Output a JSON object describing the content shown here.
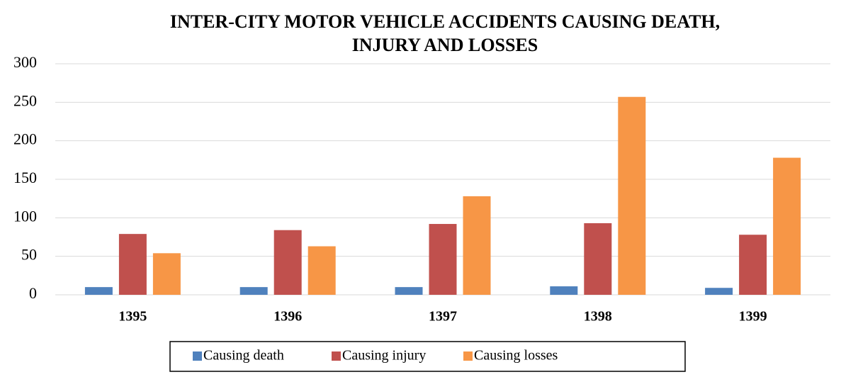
{
  "chart_data": {
    "type": "bar",
    "title": [
      "INTER-CITY MOTOR VEHICLE ACCIDENTS CAUSING DEATH,",
      "INJURY AND LOSSES"
    ],
    "categories": [
      "1395",
      "1396",
      "1397",
      "1398",
      "1399"
    ],
    "series": [
      {
        "name": "Causing death",
        "color": "#4f81bd",
        "values": [
          10,
          10,
          10,
          11,
          9
        ]
      },
      {
        "name": "Causing injury",
        "color": "#c0504d",
        "values": [
          79,
          84,
          92,
          93,
          78
        ]
      },
      {
        "name": "Causing losses",
        "color": "#f79646",
        "values": [
          54,
          63,
          128,
          257,
          178
        ]
      }
    ],
    "ylim": [
      0,
      300
    ],
    "yticks": [
      0,
      50,
      100,
      150,
      200,
      250,
      300
    ],
    "grid": true,
    "legend": "bottom"
  }
}
